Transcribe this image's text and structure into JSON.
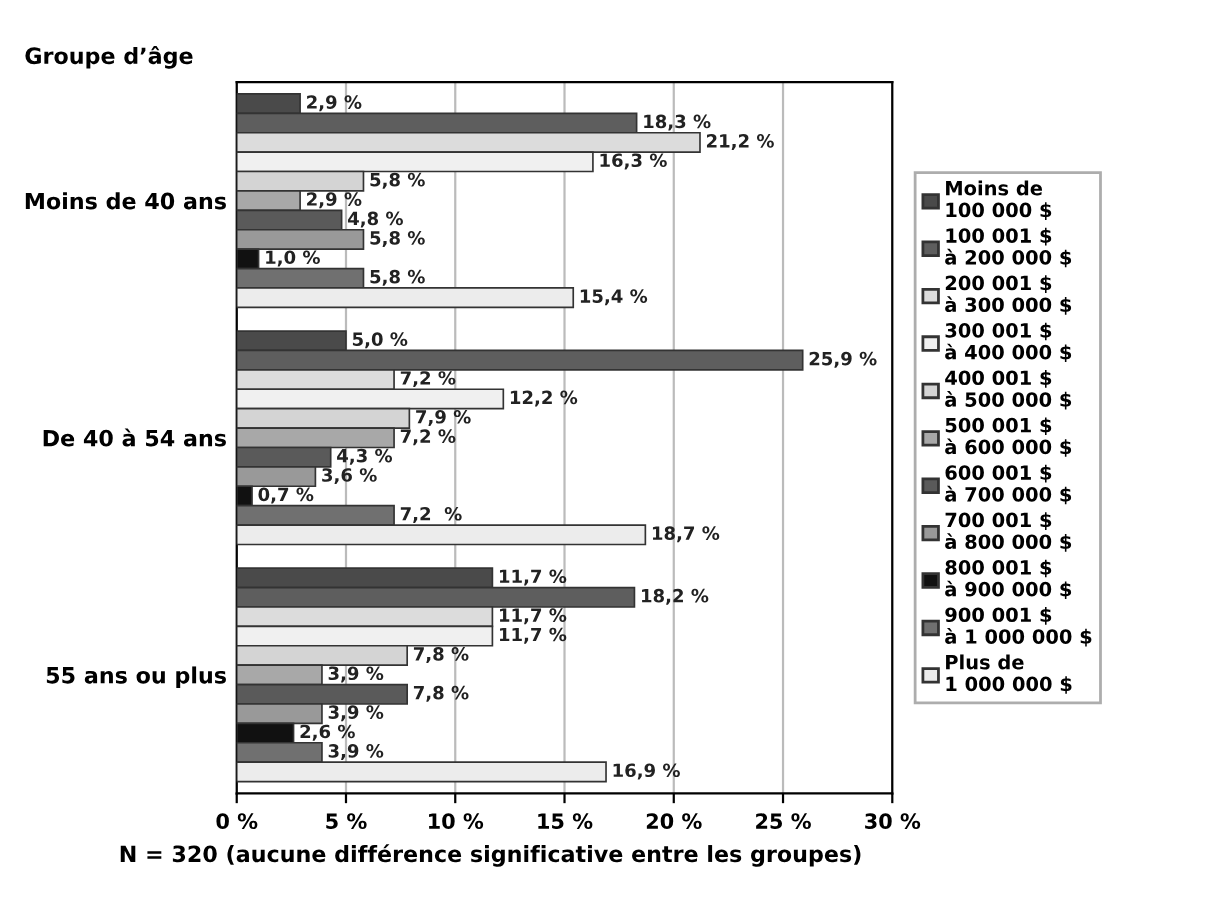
{
  "chart_data": {
    "type": "bar",
    "orientation": "horizontal",
    "ylabel": "Groupe d’âge",
    "xlabel": "N = 320 (aucune différence significative entre les groupes)",
    "categories": [
      "Moins de 40 ans",
      "De 40 à 54 ans",
      "55 ans ou plus"
    ],
    "xlim": [
      0,
      30
    ],
    "xticks": [
      {
        "value": 0,
        "label": "0 %"
      },
      {
        "value": 5,
        "label": "5 %"
      },
      {
        "value": 10,
        "label": "10 %"
      },
      {
        "value": 15,
        "label": "15 %"
      },
      {
        "value": 20,
        "label": "20 %"
      },
      {
        "value": 25,
        "label": "25 %"
      },
      {
        "value": 30,
        "label": "30 %"
      }
    ],
    "grid": "x",
    "legend": "right",
    "series": [
      {
        "name": "Moins de\n100 000 $",
        "color": "#4a4a4a",
        "values": [
          2.9,
          5.0,
          11.7
        ],
        "value_labels": [
          "2,9 %",
          "5,0 %",
          "11,7 %"
        ]
      },
      {
        "name": "100 001 $\nà 200 000 $",
        "color": "#5e5e5e",
        "values": [
          18.3,
          25.9,
          18.2
        ],
        "value_labels": [
          "18,3 %",
          "25,9 %",
          "18,2 %"
        ]
      },
      {
        "name": "200 001 $\nà 300 000 $",
        "color": "#dcdcdc",
        "values": [
          21.2,
          7.2,
          11.7
        ],
        "value_labels": [
          "21,2 %",
          "7,2 %",
          "11,7 %"
        ]
      },
      {
        "name": "300 001 $\nà 400 000 $",
        "color": "#f0f0f0",
        "values": [
          16.3,
          12.2,
          11.7
        ],
        "value_labels": [
          "16,3 %",
          "12,2 %",
          "11,7 %"
        ]
      },
      {
        "name": "400 001 $\nà 500 000 $",
        "color": "#d4d4d4",
        "values": [
          5.8,
          7.9,
          7.8
        ],
        "value_labels": [
          "5,8 %",
          "7,9 %",
          "7,8 %"
        ]
      },
      {
        "name": "500 001 $\nà 600 000 $",
        "color": "#a8a8a8",
        "values": [
          2.9,
          7.2,
          3.9
        ],
        "value_labels": [
          "2,9 %",
          "7,2 %",
          "3,9 %"
        ]
      },
      {
        "name": "600 001 $\nà 700 000 $",
        "color": "#5a5a5a",
        "values": [
          4.8,
          4.3,
          7.8
        ],
        "value_labels": [
          "4,8 %",
          "4,3 %",
          "7,8 %"
        ]
      },
      {
        "name": "700 001 $\nà 800 000 $",
        "color": "#999999",
        "values": [
          5.8,
          3.6,
          3.9
        ],
        "value_labels": [
          "5,8 %",
          "3,6 %",
          "3,9 %"
        ]
      },
      {
        "name": "800 001 $\nà 900 000 $",
        "color": "#111111",
        "values": [
          1.0,
          0.7,
          2.6
        ],
        "value_labels": [
          "1,0 %",
          "0,7 %",
          "2,6 %"
        ]
      },
      {
        "name": "900 001 $\nà 1 000 000 $",
        "color": "#707070",
        "values": [
          5.8,
          7.2,
          3.9
        ],
        "value_labels": [
          "5,8 %",
          "7,2  %",
          "3,9 %"
        ]
      },
      {
        "name": "Plus de\n1 000 000 $",
        "color": "#ececec",
        "values": [
          15.4,
          18.7,
          16.9
        ],
        "value_labels": [
          "15,4 %",
          "18,7 %",
          "16,9 %"
        ]
      }
    ]
  }
}
